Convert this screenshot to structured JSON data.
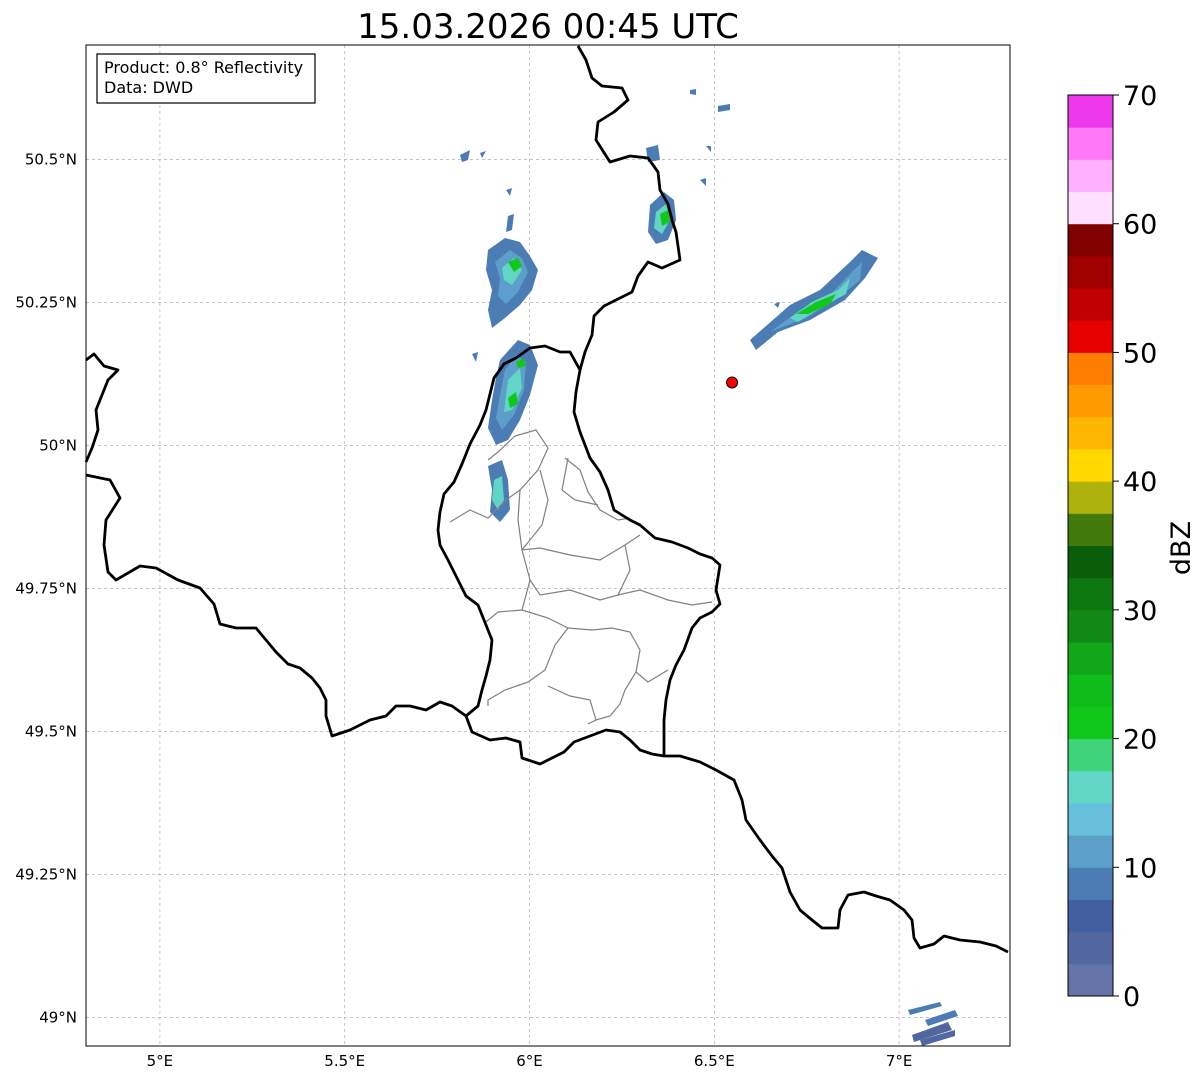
{
  "title": "15.03.2026 00:45 UTC",
  "info_box": {
    "product": "Product: 0.8° Reflectivity",
    "source": "Data: DWD"
  },
  "map": {
    "lon_range": [
      4.8,
      7.3
    ],
    "lat_range": [
      48.95,
      50.7
    ],
    "x_ticks": [
      {
        "value": 5.0,
        "label": "5°E"
      },
      {
        "value": 5.5,
        "label": "5.5°E"
      },
      {
        "value": 6.0,
        "label": "6°E"
      },
      {
        "value": 6.5,
        "label": "6.5°E"
      },
      {
        "value": 7.0,
        "label": "7°E"
      }
    ],
    "y_ticks": [
      {
        "value": 50.5,
        "label": "50.5°N"
      },
      {
        "value": 50.25,
        "label": "50.25°N"
      },
      {
        "value": 50.0,
        "label": "50°N"
      },
      {
        "value": 49.75,
        "label": "49.75°N"
      },
      {
        "value": 49.5,
        "label": "49.5°N"
      },
      {
        "value": 49.25,
        "label": "49.25°N"
      },
      {
        "value": 49.0,
        "label": "49°N"
      }
    ],
    "grid": true,
    "marker": {
      "lon": 6.548,
      "lat": 50.11,
      "color": "#ff0000"
    }
  },
  "colorbar": {
    "label": "dBZ",
    "min": 0,
    "max": 70,
    "step": 2.5,
    "ticks": [
      {
        "value": 0,
        "label": "0"
      },
      {
        "value": 10,
        "label": "10"
      },
      {
        "value": 20,
        "label": "20"
      },
      {
        "value": 30,
        "label": "30"
      },
      {
        "value": 40,
        "label": "40"
      },
      {
        "value": 50,
        "label": "50"
      },
      {
        "value": 60,
        "label": "60"
      },
      {
        "value": 70,
        "label": "70"
      }
    ],
    "colors": [
      "#6474a8",
      "#5266a0",
      "#425fa2",
      "#4c7cb4",
      "#5c9fcb",
      "#66c0dc",
      "#62d6c6",
      "#40d47a",
      "#10c81a",
      "#10bc1a",
      "#10a818",
      "#108a14",
      "#0e7810",
      "#0a5e0a",
      "#427a0a",
      "#afb20a",
      "#ffd800",
      "#ffb600",
      "#ff9a00",
      "#ff7e00",
      "#e60000",
      "#c00000",
      "#a00000",
      "#800000",
      "#ffe0ff",
      "#ffb0ff",
      "#ff78f6",
      "#ee38ee"
    ]
  }
}
